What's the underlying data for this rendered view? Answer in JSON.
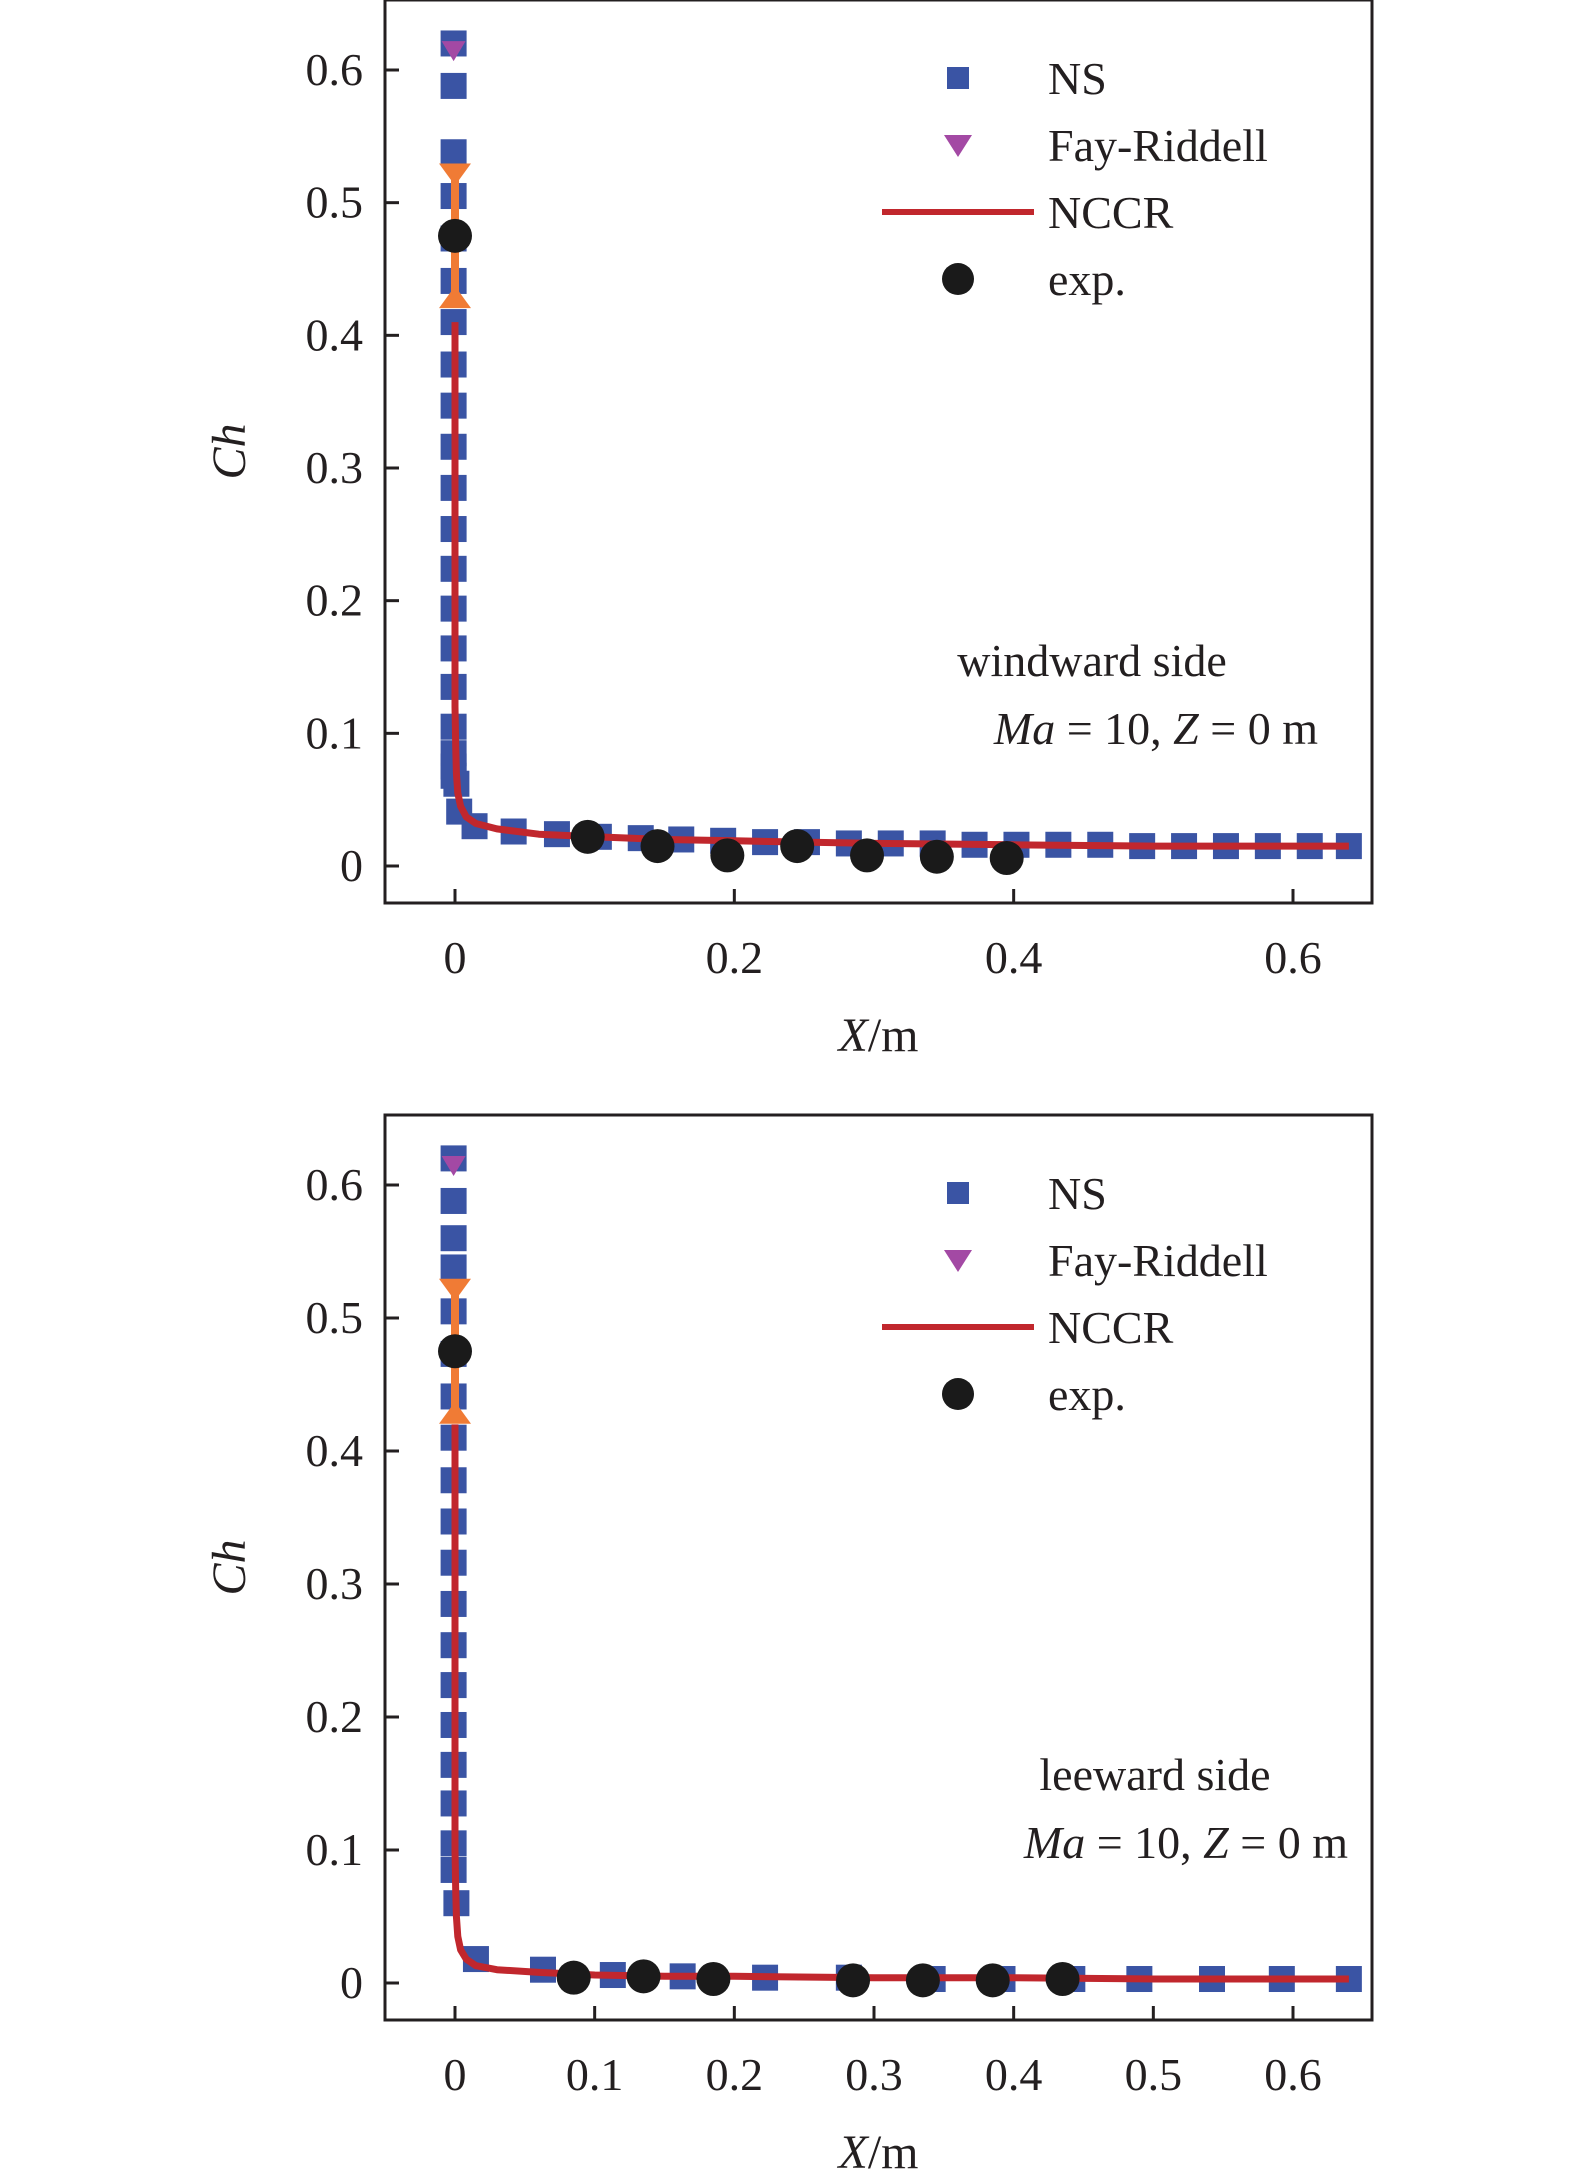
{
  "chart_data": [
    {
      "type": "scatter",
      "panel": "windward",
      "xlabel": "X/m",
      "ylabel": "Ch",
      "xlim": [
        -0.05,
        0.66
      ],
      "ylim": [
        -0.03,
        0.65
      ],
      "xticks": [
        0,
        0.2,
        0.4,
        0.6
      ],
      "xtick_labels": [
        "0",
        "0.2",
        "0.4",
        "0.6"
      ],
      "yticks": [
        0,
        0.1,
        0.2,
        0.3,
        0.4,
        0.5,
        0.6
      ],
      "ytick_labels": [
        "0",
        "0.1",
        "0.2",
        "0.3",
        "0.4",
        "0.5",
        "0.6"
      ],
      "grid": false,
      "legend_position": "top-right",
      "annotation": {
        "line1": "windward side",
        "line2_italic_1": "Ma",
        "line2_text_1": " = 10, ",
        "line2_italic_2": "Z",
        "line2_text_2": " = 0 m"
      },
      "series": [
        {
          "name": "NS",
          "kind": "marker-square",
          "color": "#3a54a4",
          "x": [
            -0.001,
            -0.001,
            -0.001,
            -0.001,
            -0.001,
            -0.001,
            -0.001,
            -0.001,
            -0.001,
            -0.001,
            -0.001,
            -0.001,
            -0.001,
            -0.001,
            -0.001,
            -0.001,
            -0.001,
            -0.001,
            -0.001,
            -0.001,
            0.001,
            0.003,
            0.014,
            0.042,
            0.073,
            0.103,
            0.133,
            0.162,
            0.192,
            0.222,
            0.252,
            0.282,
            0.312,
            0.342,
            0.372,
            0.402,
            0.432,
            0.462,
            0.492,
            0.522,
            0.552,
            0.582,
            0.612,
            0.64
          ],
          "y": [
            0.62,
            0.588,
            0.538,
            0.505,
            0.473,
            0.441,
            0.41,
            0.378,
            0.347,
            0.316,
            0.285,
            0.254,
            0.224,
            0.194,
            0.164,
            0.135,
            0.105,
            0.085,
            0.075,
            0.068,
            0.062,
            0.041,
            0.03,
            0.026,
            0.024,
            0.022,
            0.021,
            0.02,
            0.019,
            0.018,
            0.018,
            0.017,
            0.017,
            0.017,
            0.016,
            0.016,
            0.016,
            0.016,
            0.015,
            0.015,
            0.015,
            0.015,
            0.015,
            0.015
          ]
        },
        {
          "name": "Fay-Riddell",
          "kind": "marker-triangle-down",
          "color": "#a349a4",
          "x": [
            -0.001
          ],
          "y": [
            0.615
          ]
        },
        {
          "name": "NCCR",
          "kind": "line",
          "color": "#c1272d",
          "x": [
            0.0,
            0.0,
            0.0,
            0.0005,
            0.001,
            0.002,
            0.004,
            0.008,
            0.015,
            0.03,
            0.06,
            0.1,
            0.15,
            0.2,
            0.3,
            0.4,
            0.5,
            0.6,
            0.64
          ],
          "y": [
            0.41,
            0.25,
            0.12,
            0.09,
            0.07,
            0.055,
            0.045,
            0.037,
            0.032,
            0.028,
            0.024,
            0.022,
            0.02,
            0.019,
            0.017,
            0.016,
            0.015,
            0.015,
            0.015
          ]
        },
        {
          "name": "exp.",
          "kind": "marker-circle",
          "color": "#1a1a1a",
          "x": [
            0.0,
            0.095,
            0.145,
            0.195,
            0.245,
            0.295,
            0.345,
            0.395
          ],
          "y": [
            0.475,
            0.022,
            0.015,
            0.008,
            0.015,
            0.008,
            0.007,
            0.006
          ]
        }
      ],
      "error_bar": {
        "x": 0.0,
        "y": 0.475,
        "low": 0.425,
        "high": 0.525,
        "color": "#f07b35"
      }
    },
    {
      "type": "scatter",
      "panel": "leeward",
      "xlabel": "X/m",
      "ylabel": "Ch",
      "xlim": [
        -0.05,
        0.66
      ],
      "ylim": [
        -0.03,
        0.65
      ],
      "xticks": [
        0,
        0.1,
        0.2,
        0.3,
        0.4,
        0.5,
        0.6
      ],
      "xtick_labels": [
        "0",
        "0.1",
        "0.2",
        "0.3",
        "0.4",
        "0.5",
        "0.6"
      ],
      "yticks": [
        0,
        0.1,
        0.2,
        0.3,
        0.4,
        0.5,
        0.6
      ],
      "ytick_labels": [
        "0",
        "0.1",
        "0.2",
        "0.3",
        "0.4",
        "0.5",
        "0.6"
      ],
      "grid": false,
      "legend_position": "top-right",
      "annotation": {
        "line1": "leeward side",
        "line2_italic_1": "Ma",
        "line2_text_1": " = 10, ",
        "line2_italic_2": "Z",
        "line2_text_2": " = 0 m"
      },
      "series": [
        {
          "name": "NS",
          "kind": "marker-square",
          "color": "#3a54a4",
          "x": [
            -0.001,
            -0.001,
            -0.001,
            -0.001,
            -0.001,
            -0.001,
            -0.001,
            -0.001,
            -0.001,
            -0.001,
            -0.001,
            -0.001,
            -0.001,
            -0.001,
            -0.001,
            -0.001,
            -0.001,
            -0.001,
            -0.001,
            0.001,
            0.015,
            0.063,
            0.113,
            0.163,
            0.222,
            0.282,
            0.342,
            0.392,
            0.442,
            0.49,
            0.542,
            0.592,
            0.64
          ],
          "y": [
            0.62,
            0.588,
            0.56,
            0.538,
            0.505,
            0.473,
            0.441,
            0.41,
            0.378,
            0.347,
            0.316,
            0.285,
            0.254,
            0.224,
            0.194,
            0.164,
            0.135,
            0.105,
            0.085,
            0.06,
            0.018,
            0.01,
            0.006,
            0.005,
            0.004,
            0.004,
            0.003,
            0.003,
            0.003,
            0.003,
            0.003,
            0.003,
            0.003
          ]
        },
        {
          "name": "Fay-Riddell",
          "kind": "marker-triangle-down",
          "color": "#a349a4",
          "x": [
            -0.001
          ],
          "y": [
            0.615
          ]
        },
        {
          "name": "NCCR",
          "kind": "line",
          "color": "#c1272d",
          "x": [
            0.0,
            0.0,
            0.0,
            0.0005,
            0.001,
            0.002,
            0.004,
            0.008,
            0.015,
            0.03,
            0.06,
            0.1,
            0.15,
            0.2,
            0.3,
            0.4,
            0.5,
            0.6,
            0.64
          ],
          "y": [
            0.42,
            0.25,
            0.1,
            0.07,
            0.05,
            0.035,
            0.025,
            0.018,
            0.013,
            0.01,
            0.008,
            0.006,
            0.005,
            0.005,
            0.004,
            0.004,
            0.003,
            0.003,
            0.003
          ]
        },
        {
          "name": "exp.",
          "kind": "marker-circle",
          "color": "#1a1a1a",
          "x": [
            0.0,
            0.085,
            0.135,
            0.185,
            0.285,
            0.335,
            0.385,
            0.435
          ],
          "y": [
            0.475,
            0.004,
            0.005,
            0.003,
            0.002,
            0.002,
            0.002,
            0.003
          ]
        }
      ],
      "error_bar": {
        "x": 0.0,
        "y": 0.475,
        "low": 0.425,
        "high": 0.525,
        "color": "#f07b35"
      }
    }
  ]
}
